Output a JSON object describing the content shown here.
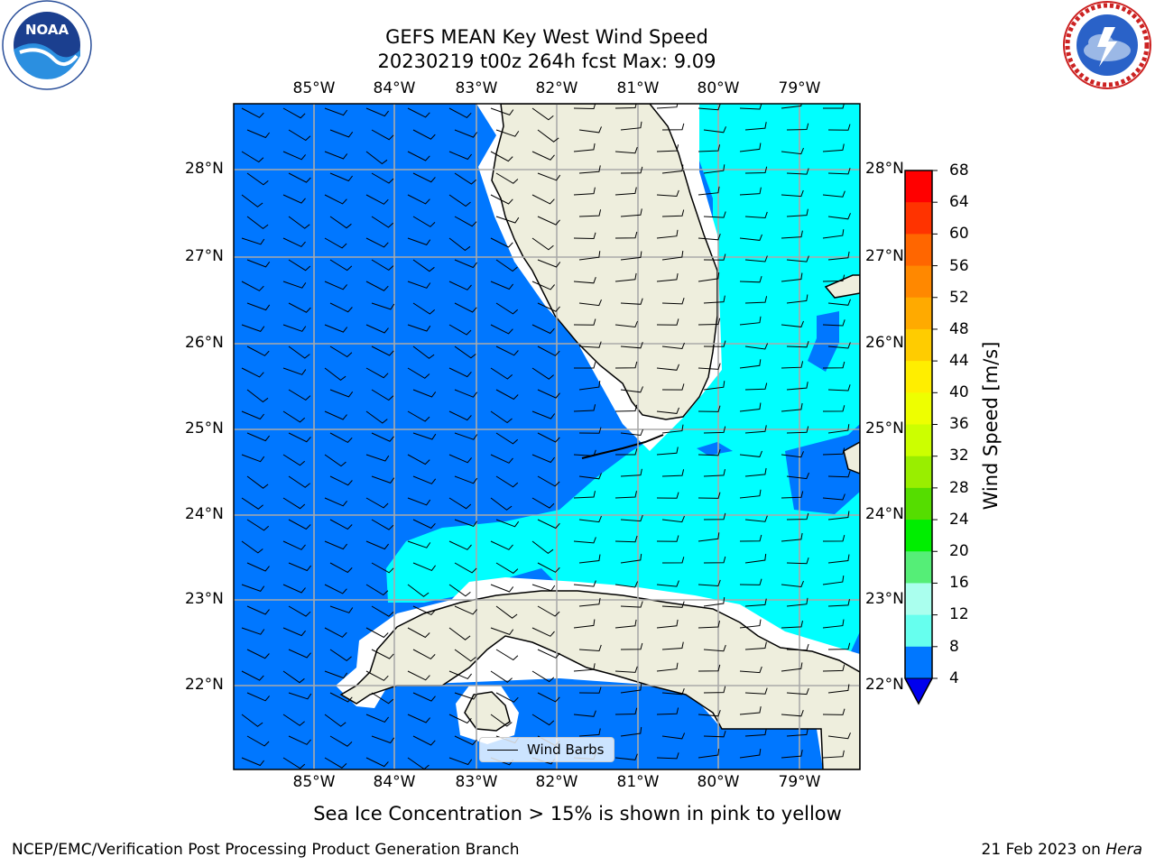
{
  "header": {
    "title_line1": "GEFS MEAN Key West Wind Speed",
    "title_line2": "20230219 t00z 264h fcst   Max: 9.09"
  },
  "logos": {
    "noaa": {
      "text": "NOAA",
      "ring_text": "NATIONAL OCEANIC AND ATMOSPHERIC ADMINISTRATION · U.S. DEPARTMENT OF COMMERCE"
    },
    "nws": {
      "ring_text": "NATIONAL WEATHER SERVICE"
    }
  },
  "map": {
    "lon_ticks": [
      "85°W",
      "84°W",
      "83°W",
      "82°W",
      "81°W",
      "80°W",
      "79°W"
    ],
    "lat_ticks": [
      "28°N",
      "27°N",
      "26°N",
      "25°N",
      "24°N",
      "23°N",
      "22°N"
    ],
    "legend_label": "Wind Barbs",
    "colors": {
      "land": "#eeeedd",
      "wind_4_8": "#0077ff",
      "wind_8_12": "#00ffff",
      "gridline": "#aaaaaa"
    }
  },
  "colorbar": {
    "title": "Wind Speed [m/s]",
    "labels": [
      "68",
      "64",
      "60",
      "56",
      "52",
      "48",
      "44",
      "40",
      "36",
      "32",
      "28",
      "24",
      "20",
      "16",
      "12",
      "8",
      "4"
    ],
    "colors": [
      "#ff0000",
      "#ff3300",
      "#ff6600",
      "#ff8800",
      "#ffaa00",
      "#ffcc00",
      "#ffee00",
      "#eeff00",
      "#ccff00",
      "#99ee00",
      "#55dd00",
      "#00ee00",
      "#55ee77",
      "#aaffee",
      "#66ffee",
      "#00ffff",
      "#0077ff"
    ],
    "under_color": "#0000ee"
  },
  "footer": {
    "caption": "Sea Ice Concentration > 15% is shown in pink to yellow",
    "credit": "NCEP/EMC/Verification Post Processing Product Generation Branch",
    "date": "21 Feb 2023 on ",
    "host": "Hera"
  }
}
